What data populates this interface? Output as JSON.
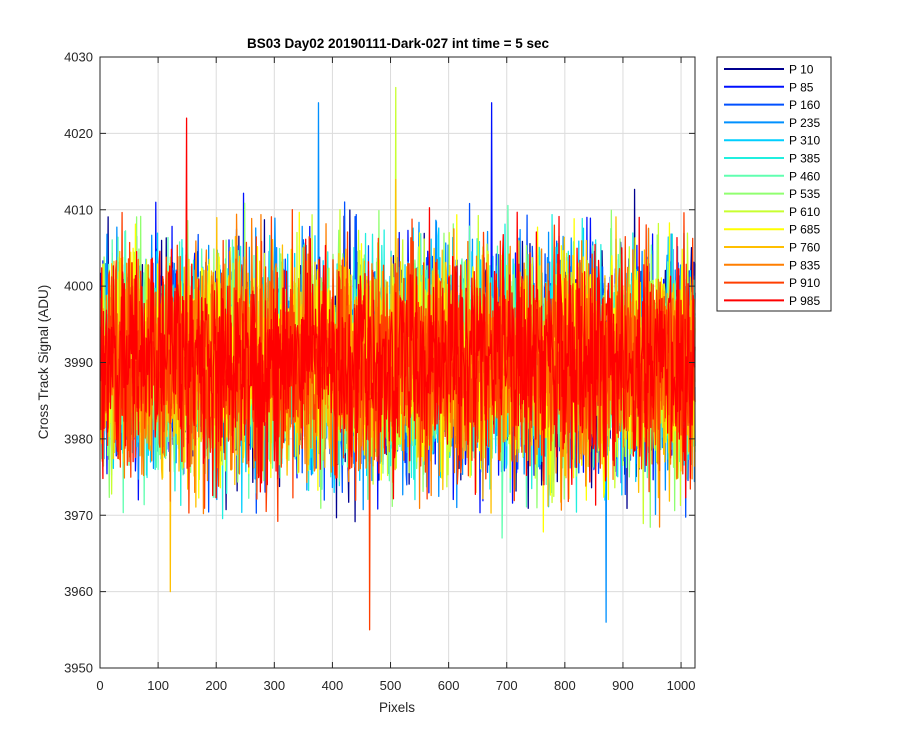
{
  "chart_data": {
    "type": "line",
    "title": "BS03 Day02 20190111-Dark-027 int time = 5 sec",
    "xlabel": "Pixels",
    "ylabel": "Cross Track Signal (ADU)",
    "xlim": [
      0,
      1024
    ],
    "ylim": [
      3950,
      4030
    ],
    "xticks": [
      "0",
      "100",
      "200",
      "300",
      "400",
      "500",
      "600",
      "700",
      "800",
      "900",
      "1000"
    ],
    "yticks": [
      "3950",
      "3960",
      "3970",
      "3980",
      "3990",
      "4000",
      "4010",
      "4020",
      "4030"
    ],
    "grid": true,
    "legend_position": "outside-top-right",
    "series_stats": {
      "n_points": 1024,
      "mean": 3990,
      "typical_min": 3970,
      "typical_max": 4012
    },
    "series": [
      {
        "name": "P 10",
        "color": "#00008f"
      },
      {
        "name": "P 85",
        "color": "#0010ff"
      },
      {
        "name": "P 160",
        "color": "#0050ff"
      },
      {
        "name": "P 235",
        "color": "#0090ff"
      },
      {
        "name": "P 310",
        "color": "#00cfff"
      },
      {
        "name": "P 385",
        "color": "#20efdf"
      },
      {
        "name": "P 460",
        "color": "#60ffb0"
      },
      {
        "name": "P 535",
        "color": "#90ff70"
      },
      {
        "name": "P 610",
        "color": "#c8ff30"
      },
      {
        "name": "P 685",
        "color": "#ffff00"
      },
      {
        "name": "P 760",
        "color": "#ffbf00"
      },
      {
        "name": "P 835",
        "color": "#ff7f00"
      },
      {
        "name": "P 910",
        "color": "#ff3f00"
      },
      {
        "name": "P 985",
        "color": "#ff0000"
      }
    ],
    "annotated_extremes": [
      {
        "series": "P 235",
        "x": 375,
        "y": 4024
      },
      {
        "series": "P 85",
        "x": 673,
        "y": 4024
      },
      {
        "series": "P 610",
        "x": 508,
        "y": 4026
      },
      {
        "series": "P 985",
        "x": 148,
        "y": 4022
      },
      {
        "series": "P 910",
        "x": 463,
        "y": 3955
      },
      {
        "series": "P 235",
        "x": 870,
        "y": 3956
      },
      {
        "series": "P 760",
        "x": 120,
        "y": 3960
      }
    ]
  }
}
